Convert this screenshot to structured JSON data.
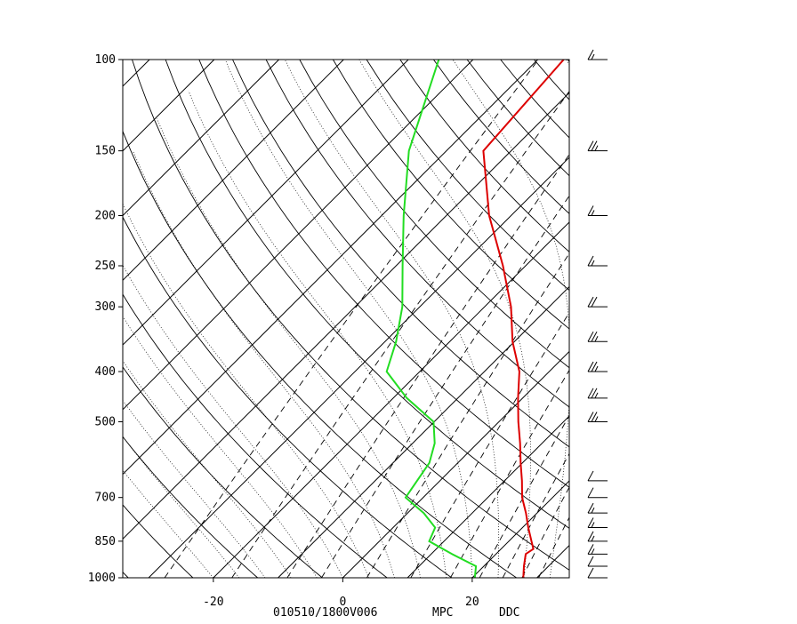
{
  "chart_data": {
    "type": "line",
    "plot": "skew-t log-p sounding",
    "pressure_ticks": [
      100,
      150,
      200,
      250,
      300,
      400,
      500,
      700,
      850,
      1000
    ],
    "pressure_tick_labels": [
      "100",
      "150",
      "200",
      "250",
      "300",
      "400",
      "500",
      "700",
      "850",
      "1000"
    ],
    "temp_ticks": [
      -20,
      0,
      20
    ],
    "temp_tick_labels": [
      "-20",
      "0",
      "20"
    ],
    "footer": {
      "valid": "010510/1800V006",
      "source": "\u0001MPC",
      "station": "DDC"
    },
    "temperature_range": [
      -34,
      35
    ],
    "pressure_range": [
      100,
      1000
    ],
    "series": [
      {
        "color": "#dd0000",
        "points": [
          {
            "p": 1000,
            "t": 27.9
          },
          {
            "p": 950,
            "t": 26.2
          },
          {
            "p": 900,
            "t": 24.6
          },
          {
            "p": 880,
            "t": 25.0
          },
          {
            "p": 850,
            "t": 23.5
          },
          {
            "p": 800,
            "t": 20.9
          },
          {
            "p": 750,
            "t": 18.3
          },
          {
            "p": 700,
            "t": 15.3
          },
          {
            "p": 650,
            "t": 12.7
          },
          {
            "p": 600,
            "t": 9.7
          },
          {
            "p": 550,
            "t": 6.6
          },
          {
            "p": 500,
            "t": 3.0
          },
          {
            "p": 450,
            "t": -0.7
          },
          {
            "p": 400,
            "t": -4.6
          },
          {
            "p": 350,
            "t": -10.3
          },
          {
            "p": 300,
            "t": -15.9
          },
          {
            "p": 250,
            "t": -23.5
          },
          {
            "p": 200,
            "t": -33.4
          },
          {
            "p": 150,
            "t": -44.3
          },
          {
            "p": 100,
            "t": -46.0
          }
        ]
      },
      {
        "color": "#22dd22",
        "points": [
          {
            "p": 1000,
            "t": 20.4
          },
          {
            "p": 950,
            "t": 18.8
          },
          {
            "p": 900,
            "t": 13.2
          },
          {
            "p": 850,
            "t": 7.7
          },
          {
            "p": 800,
            "t": 6.5
          },
          {
            "p": 750,
            "t": 2.5
          },
          {
            "p": 700,
            "t": -2.7
          },
          {
            "p": 600,
            "t": -4.4
          },
          {
            "p": 550,
            "t": -6.6
          },
          {
            "p": 500,
            "t": -10.1
          },
          {
            "p": 450,
            "t": -17.9
          },
          {
            "p": 400,
            "t": -25.1
          },
          {
            "p": 350,
            "t": -28.3
          },
          {
            "p": 300,
            "t": -32.7
          },
          {
            "p": 250,
            "t": -39.0
          },
          {
            "p": 200,
            "t": -46.6
          },
          {
            "p": 150,
            "t": -55.8
          },
          {
            "p": 100,
            "t": -65.3
          }
        ]
      }
    ],
    "grid": true,
    "reference_lines": [
      "isotherms",
      "dry adiabats",
      "moist adiabats",
      "mixing ratio lines"
    ],
    "wind_barbs": [
      {
        "p": 1000,
        "speed_kt": 10
      },
      {
        "p": 950,
        "speed_kt": 10
      },
      {
        "p": 900,
        "speed_kt": 15
      },
      {
        "p": 850,
        "speed_kt": 15
      },
      {
        "p": 800,
        "speed_kt": 15
      },
      {
        "p": 750,
        "speed_kt": 15
      },
      {
        "p": 700,
        "speed_kt": 10
      },
      {
        "p": 650,
        "speed_kt": 10
      },
      {
        "p": 500,
        "speed_kt": 25
      },
      {
        "p": 450,
        "speed_kt": 25
      },
      {
        "p": 400,
        "speed_kt": 25
      },
      {
        "p": 350,
        "speed_kt": 25
      },
      {
        "p": 300,
        "speed_kt": 20
      },
      {
        "p": 250,
        "speed_kt": 15
      },
      {
        "p": 200,
        "speed_kt": 15
      },
      {
        "p": 150,
        "speed_kt": 25
      },
      {
        "p": 100,
        "speed_kt": 15
      }
    ]
  },
  "colors": {
    "temperature": "#dd0000",
    "dewpoint": "#22dd22",
    "frame": "#000000"
  }
}
